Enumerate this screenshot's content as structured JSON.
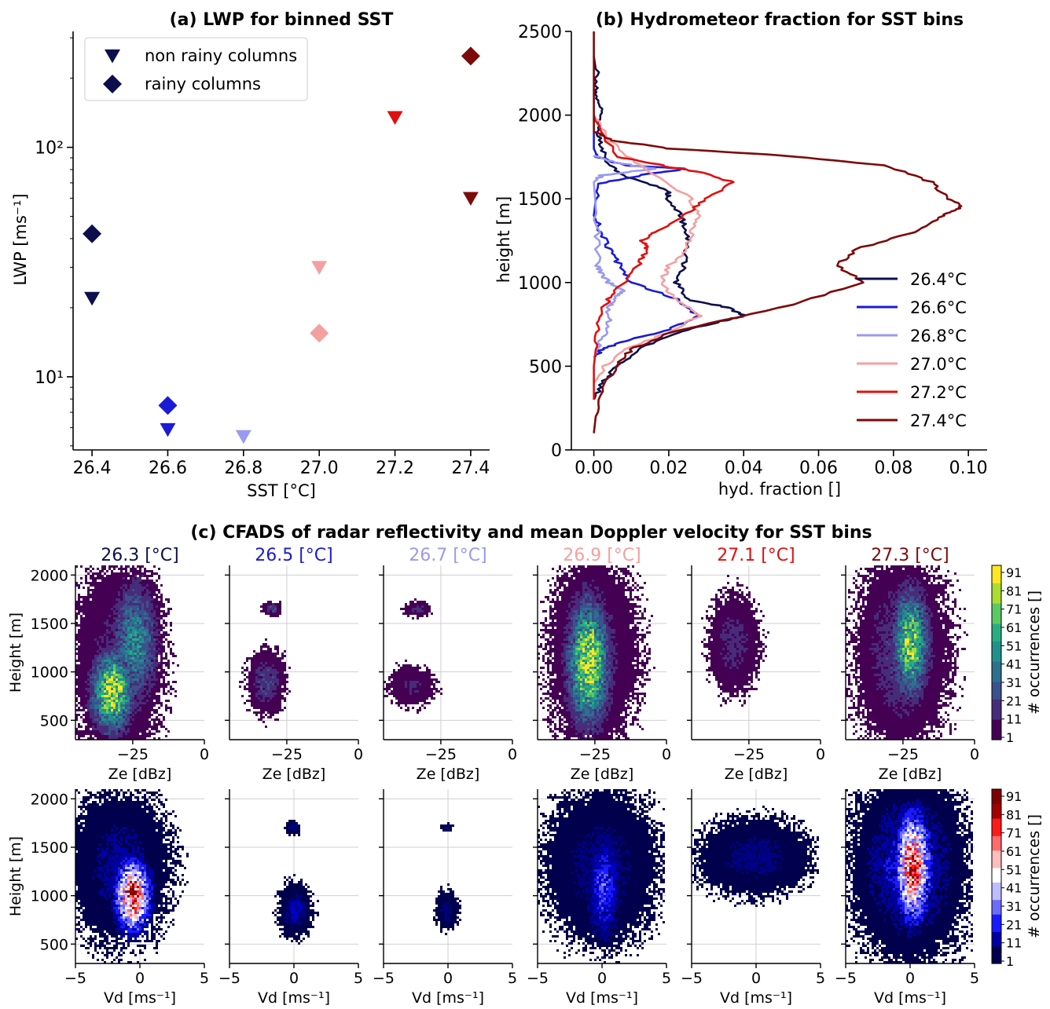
{
  "chart_data": [
    {
      "panel": "a",
      "type": "scatter",
      "title": "(a) LWP for binned SST",
      "xlabel": "SST [°C]",
      "ylabel": "LWP [ms⁻¹]",
      "xlim": [
        26.35,
        27.45
      ],
      "ylim": [
        4.8,
        320
      ],
      "yscale": "log",
      "xticks": [
        26.4,
        26.6,
        26.8,
        27.0,
        27.2,
        27.4
      ],
      "xticklabels": [
        "26.4",
        "26.6",
        "26.8",
        "27.0",
        "27.2",
        "27.4"
      ],
      "yticks": [
        10,
        100
      ],
      "yticklabels": [
        "10¹",
        "10²"
      ],
      "legend": {
        "placement": "top-left",
        "entries": [
          {
            "label": "non rainy columns",
            "marker": "triangle-down"
          },
          {
            "label": "rainy columns",
            "marker": "diamond"
          }
        ]
      },
      "series": [
        {
          "name": "non rainy columns",
          "marker": "triangle-down",
          "x": [
            26.4,
            26.6,
            26.8,
            27.0,
            27.2,
            27.4
          ],
          "y": [
            22,
            5.9,
            5.5,
            30,
            135,
            60
          ]
        },
        {
          "name": "rainy columns",
          "marker": "diamond",
          "x": [
            26.4,
            26.6,
            27.0,
            27.4
          ],
          "y": [
            42,
            7.5,
            15.5,
            250
          ]
        }
      ],
      "colors": [
        "#0d0f4d",
        "#1b1bd6",
        "#9a9af0",
        "#f4a0a0",
        "#e01010",
        "#7d0a0a"
      ]
    },
    {
      "panel": "b",
      "type": "line",
      "title": "(b) Hydrometeor fraction for SST bins",
      "xlabel": "hyd. fraction []",
      "ylabel": "height [m]",
      "xlim": [
        -0.006,
        0.105
      ],
      "ylim": [
        0,
        2500
      ],
      "xticks": [
        0.0,
        0.02,
        0.04,
        0.06,
        0.08,
        0.1
      ],
      "xticklabels": [
        "0.00",
        "0.02",
        "0.04",
        "0.06",
        "0.08",
        "0.10"
      ],
      "yticks": [
        0,
        500,
        1000,
        1500,
        2000,
        2500
      ],
      "yticklabels": [
        "0",
        "500",
        "1000",
        "1500",
        "2000",
        "2500"
      ],
      "legend": {
        "placement": "bottom-right"
      },
      "series": [
        {
          "name": "26.4°C",
          "color": "#0d0f4d",
          "x": [
            0.0,
            0.002,
            0.006,
            0.012,
            0.022,
            0.034,
            0.04,
            0.036,
            0.025,
            0.022,
            0.024,
            0.025,
            0.025,
            0.023,
            0.02,
            0.02,
            0.01,
            0.004,
            0.002,
            0.001,
            0.002,
            0.001,
            0.001,
            0.0
          ],
          "y": [
            300,
            400,
            500,
            600,
            700,
            770,
            800,
            850,
            900,
            1000,
            1100,
            1200,
            1300,
            1400,
            1500,
            1550,
            1620,
            1700,
            1800,
            1900,
            2000,
            2100,
            2200,
            2350
          ]
        },
        {
          "name": "26.6°C",
          "color": "#1b1bd6",
          "x": [
            0.0,
            0.002,
            0.008,
            0.02,
            0.028,
            0.022,
            0.01,
            0.007,
            0.004,
            0.002,
            0.0,
            0.001,
            0.015,
            0.025,
            0.008,
            0.001,
            0.0,
            0.0
          ],
          "y": [
            550,
            600,
            650,
            720,
            800,
            900,
            1000,
            1100,
            1200,
            1300,
            1400,
            1590,
            1650,
            1680,
            1700,
            1750,
            1800,
            1900
          ]
        },
        {
          "name": "26.8°C",
          "color": "#9a9af0",
          "x": [
            0.0,
            0.002,
            0.004,
            0.004,
            0.005,
            0.008,
            0.004,
            0.002,
            0.001,
            0.001,
            0.0,
            0.002,
            0.016,
            0.005,
            0.0
          ],
          "y": [
            550,
            650,
            750,
            850,
            900,
            950,
            1000,
            1050,
            1100,
            1300,
            1600,
            1640,
            1680,
            1720,
            1760
          ]
        },
        {
          "name": "27.0°C",
          "color": "#f4a0a0",
          "x": [
            0.0,
            0.003,
            0.008,
            0.02,
            0.028,
            0.022,
            0.018,
            0.02,
            0.025,
            0.026,
            0.028,
            0.026,
            0.012,
            0.004,
            0.0
          ],
          "y": [
            400,
            500,
            600,
            700,
            800,
            900,
            1000,
            1100,
            1200,
            1300,
            1400,
            1500,
            1700,
            1850,
            2000
          ]
        },
        {
          "name": "27.2°C",
          "color": "#e01010",
          "x": [
            0.0,
            0.0,
            0.001,
            0.002,
            0.006,
            0.012,
            0.014,
            0.013,
            0.016,
            0.024,
            0.03,
            0.037,
            0.03,
            0.018,
            0.006,
            0.0
          ],
          "y": [
            300,
            500,
            700,
            850,
            950,
            1100,
            1200,
            1250,
            1300,
            1400,
            1500,
            1600,
            1650,
            1700,
            1750,
            2000
          ]
        },
        {
          "name": "27.4°C",
          "color": "#7d0a0a",
          "x": [
            0.0,
            0.001,
            0.006,
            0.01,
            0.02,
            0.05,
            0.072,
            0.065,
            0.07,
            0.085,
            0.093,
            0.098,
            0.095,
            0.09,
            0.078,
            0.05,
            0.02,
            0.005,
            0.0,
            0.0
          ],
          "y": [
            100,
            300,
            500,
            600,
            700,
            850,
            1000,
            1100,
            1200,
            1300,
            1400,
            1450,
            1500,
            1600,
            1700,
            1760,
            1800,
            1850,
            1900,
            2500
          ]
        }
      ]
    },
    {
      "panel": "c",
      "type": "heatmap",
      "title": "(c) CFADS of radar reflectivity and mean Doppler velocity for SST bins",
      "bins": [
        "26.3 [°C]",
        "26.5 [°C]",
        "26.7 [°C]",
        "26.9 [°C]",
        "27.1 [°C]",
        "27.3 [°C]"
      ],
      "bin_colors": [
        "#0d0f4d",
        "#1b1bd6",
        "#9a9af0",
        "#f4a0a0",
        "#e01010",
        "#7d0a0a"
      ],
      "ylabel": "Height [m]",
      "yticks": [
        500,
        1000,
        1500,
        2000
      ],
      "yticklabels": [
        "500",
        "1000",
        "1500",
        "2000"
      ],
      "ylim": [
        300,
        2100
      ],
      "grid": true,
      "colorbar_label": "# occurrences []",
      "colorbar_ticks": [
        "1",
        "11",
        "21",
        "31",
        "41",
        "51",
        "61",
        "71",
        "81",
        "91"
      ],
      "rows": [
        {
          "xlabel": "Ze [dBz]",
          "xticks": [
            -25,
            0
          ],
          "xticklabels": [
            "−25",
            "0"
          ],
          "xlim": [
            -45,
            0
          ],
          "colormap": "viridis",
          "panels": [
            {
              "blobs": [
                [
                  -32,
                  800,
                  8,
                  450,
                  0.85
                ],
                [
                  -24,
                  1300,
                  9,
                  700,
                  0.45
                ],
                [
                  -30,
                  1100,
                  14,
                  900,
                  0.15
                ]
              ]
            },
            {
              "blobs": [
                [
                  -30,
                  1650,
                  3,
                  60,
                  0.25
                ],
                [
                  -32,
                  900,
                  6,
                  300,
                  0.22
                ]
              ]
            },
            {
              "blobs": [
                [
                  -33,
                  1650,
                  4,
                  70,
                  0.15
                ],
                [
                  -35,
                  850,
                  7,
                  180,
                  0.12
                ]
              ]
            },
            {
              "blobs": [
                [
                  -27,
                  1100,
                  8,
                  700,
                  0.85
                ],
                [
                  -25,
                  1200,
                  14,
                  900,
                  0.15
                ]
              ]
            },
            {
              "blobs": [
                [
                  -30,
                  1300,
                  8,
                  450,
                  0.15
                ]
              ]
            },
            {
              "blobs": [
                [
                  -22,
                  1300,
                  7,
                  600,
                  0.75
                ],
                [
                  -25,
                  1200,
                  15,
                  900,
                  0.2
                ]
              ]
            }
          ]
        },
        {
          "xlabel": "Vd [ms⁻¹]",
          "xticks": [
            -5,
            0,
            5
          ],
          "xticklabels": [
            "−5",
            "0",
            "5"
          ],
          "xlim": [
            -5,
            5
          ],
          "colormap": "seismic",
          "panels": [
            {
              "blobs": [
                [
                  -0.5,
                  1000,
                  1.5,
                  400,
                  0.75
                ],
                [
                  -1.5,
                  1300,
                  3.5,
                  700,
                  0.12
                ]
              ]
            },
            {
              "blobs": [
                [
                  0,
                  1700,
                  0.5,
                  60,
                  0.15
                ],
                [
                  0.2,
                  850,
                  1.2,
                  250,
                  0.18
                ]
              ]
            },
            {
              "blobs": [
                [
                  0,
                  1700,
                  0.4,
                  40,
                  0.12
                ],
                [
                  0,
                  850,
                  0.8,
                  180,
                  0.12
                ]
              ]
            },
            {
              "blobs": [
                [
                  0.2,
                  1100,
                  1.4,
                  600,
                  0.35
                ],
                [
                  0,
                  1300,
                  4,
                  700,
                  0.12
                ]
              ]
            },
            {
              "blobs": [
                [
                  0,
                  1400,
                  4,
                  350,
                  0.12
                ]
              ]
            },
            {
              "blobs": [
                [
                  0.3,
                  1300,
                  1.5,
                  600,
                  0.75
                ],
                [
                  0,
                  1300,
                  4.2,
                  900,
                  0.18
                ]
              ]
            }
          ]
        }
      ]
    }
  ]
}
